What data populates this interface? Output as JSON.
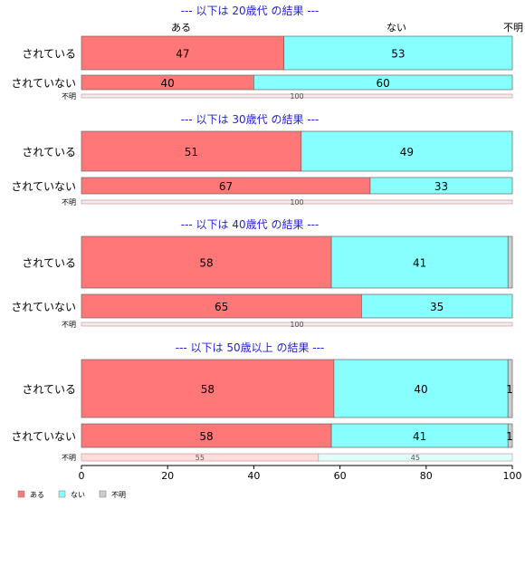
{
  "chart_data": {
    "type": "bar",
    "orientation": "horizontal",
    "stacked": true,
    "normalized": true,
    "xlim": [
      0,
      100
    ],
    "x_ticks": [
      0,
      20,
      40,
      60,
      80,
      100
    ],
    "legend": {
      "position": "bottom-left",
      "entries": [
        {
          "name": "ある",
          "color": "#ff7777"
        },
        {
          "name": "ない",
          "color": "#88ffff"
        },
        {
          "name": "不明",
          "color": "#cccccc"
        }
      ]
    },
    "top_labels": [
      "ある",
      "ない",
      "不明"
    ],
    "panels": [
      {
        "title": "--- 以下は 20歳代 の結果 ---",
        "rows": [
          {
            "label": "されている",
            "values": [
              47,
              53,
              0
            ],
            "value_labels": [
              "47",
              "53",
              ""
            ]
          },
          {
            "label": "されていない",
            "values": [
              40,
              60,
              0
            ],
            "value_labels": [
              "40",
              "60",
              ""
            ]
          },
          {
            "label": "不明",
            "values": [
              0,
              0,
              100
            ],
            "value_labels": [
              "",
              "",
              "100"
            ]
          }
        ]
      },
      {
        "title": "--- 以下は 30歳代 の結果 ---",
        "rows": [
          {
            "label": "されている",
            "values": [
              51,
              49,
              0
            ],
            "value_labels": [
              "51",
              "49",
              ""
            ]
          },
          {
            "label": "されていない",
            "values": [
              67,
              33,
              0
            ],
            "value_labels": [
              "67",
              "33",
              ""
            ]
          },
          {
            "label": "不明",
            "values": [
              0,
              0,
              100
            ],
            "value_labels": [
              "",
              "",
              "100"
            ]
          }
        ]
      },
      {
        "title": "--- 以下は 40歳代 の結果 ---",
        "rows": [
          {
            "label": "されている",
            "values": [
              58,
              41,
              1
            ],
            "value_labels": [
              "58",
              "41",
              ""
            ]
          },
          {
            "label": "されていない",
            "values": [
              65,
              35,
              0
            ],
            "value_labels": [
              "65",
              "35",
              ""
            ]
          },
          {
            "label": "不明",
            "values": [
              0,
              0,
              100
            ],
            "value_labels": [
              "",
              "",
              "100"
            ]
          }
        ]
      },
      {
        "title": "--- 以下は 50歳以上 の結果 ---",
        "rows": [
          {
            "label": "されている",
            "values": [
              58,
              40,
              1
            ],
            "value_labels": [
              "58",
              "40",
              "1"
            ]
          },
          {
            "label": "されていない",
            "values": [
              58,
              41,
              1
            ],
            "value_labels": [
              "58",
              "41",
              "1"
            ]
          },
          {
            "label": "不明",
            "values": [
              55,
              45,
              0
            ],
            "value_labels": [
              "55",
              "45",
              ""
            ]
          }
        ]
      }
    ]
  }
}
